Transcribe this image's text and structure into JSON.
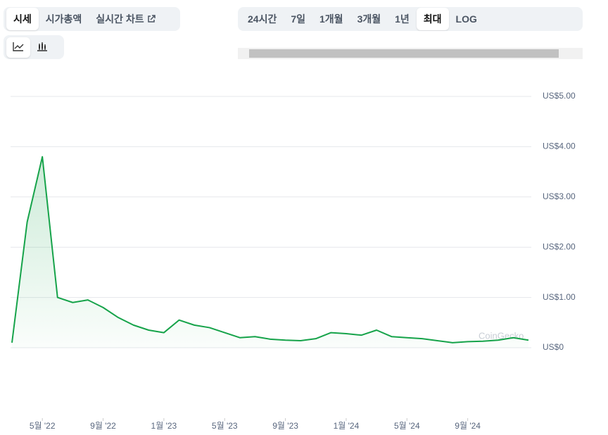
{
  "ui": {
    "tabs": [
      "시세",
      "시가총액",
      "실시간 차트"
    ],
    "ranges": [
      "24시간",
      "7일",
      "1개월",
      "3개월",
      "1년",
      "최대",
      "LOG"
    ]
  },
  "chart_data": {
    "type": "line",
    "watermark": "CoinGecko",
    "color": "#16a34a",
    "grid": true,
    "x": [
      "2022-03",
      "2022-04",
      "2022-05",
      "2022-06",
      "2022-07",
      "2022-08",
      "2022-09",
      "2022-10",
      "2022-11",
      "2022-12",
      "2023-01",
      "2023-02",
      "2023-03",
      "2023-04",
      "2023-05",
      "2023-06",
      "2023-07",
      "2023-08",
      "2023-09",
      "2023-10",
      "2023-11",
      "2023-12",
      "2024-01",
      "2024-02",
      "2024-03",
      "2024-04",
      "2024-05",
      "2024-06",
      "2024-07",
      "2024-08",
      "2024-09",
      "2024-10",
      "2024-11",
      "2024-12",
      "2025-01"
    ],
    "values": [
      0.1,
      2.5,
      3.8,
      1.0,
      0.9,
      0.95,
      0.8,
      0.6,
      0.45,
      0.35,
      0.3,
      0.55,
      0.45,
      0.4,
      0.3,
      0.2,
      0.22,
      0.17,
      0.15,
      0.14,
      0.18,
      0.3,
      0.28,
      0.25,
      0.35,
      0.22,
      0.2,
      0.18,
      0.14,
      0.1,
      0.12,
      0.13,
      0.15,
      0.2,
      0.15
    ],
    "xlim": [
      "2022-03",
      "2025-01"
    ],
    "xticks": [
      {
        "value": "2022-05",
        "label": "5월 '22"
      },
      {
        "value": "2022-09",
        "label": "9월 '22"
      },
      {
        "value": "2023-01",
        "label": "1월 '23"
      },
      {
        "value": "2023-05",
        "label": "5월 '23"
      },
      {
        "value": "2023-09",
        "label": "9월 '23"
      },
      {
        "value": "2024-01",
        "label": "1월 '24"
      },
      {
        "value": "2024-05",
        "label": "5월 '24"
      },
      {
        "value": "2024-09",
        "label": "9월 '24"
      }
    ],
    "ylim": [
      0,
      5
    ],
    "yticks": [
      {
        "value": 0,
        "label": "US$0"
      },
      {
        "value": 1,
        "label": "US$1.00"
      },
      {
        "value": 2,
        "label": "US$2.00"
      },
      {
        "value": 3,
        "label": "US$3.00"
      },
      {
        "value": 4,
        "label": "US$4.00"
      },
      {
        "value": 5,
        "label": "US$5.00"
      }
    ]
  }
}
